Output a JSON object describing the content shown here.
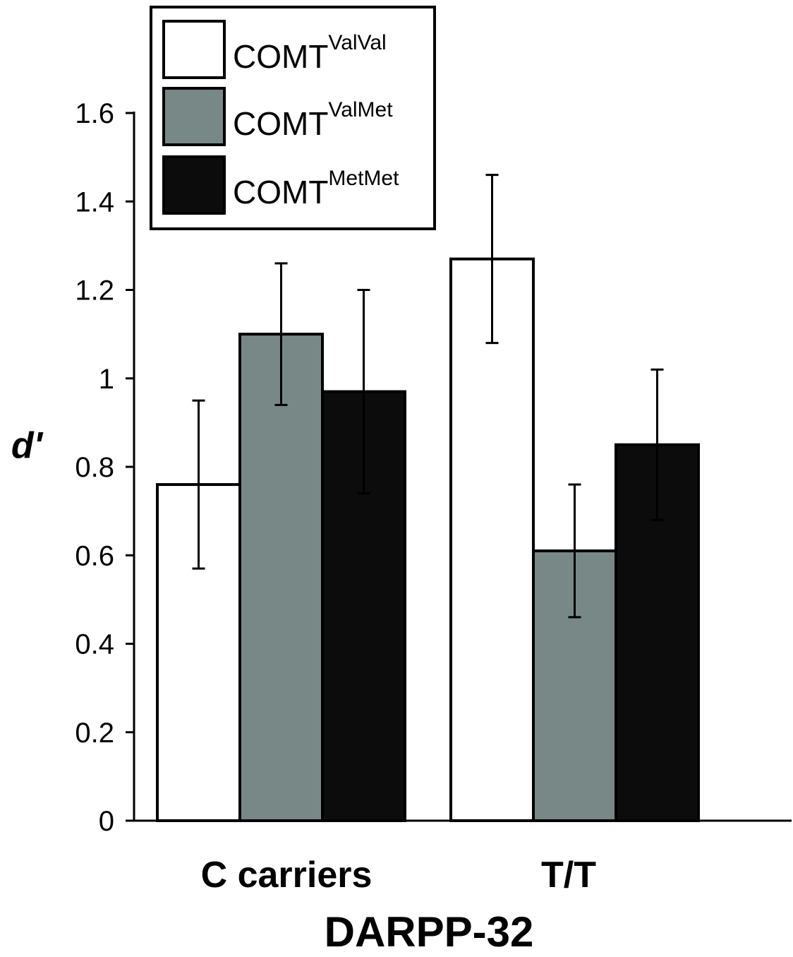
{
  "chart_data": {
    "type": "bar",
    "title": "",
    "xlabel": "DARPP-32",
    "ylabel": "d'",
    "ylim": [
      0,
      1.6
    ],
    "yticks": [
      "0",
      "0.2",
      "0.4",
      "0.6",
      "0.8",
      "1",
      "1.2",
      "1.4",
      "1.6"
    ],
    "categories": [
      "C carriers",
      "T/T"
    ],
    "series": [
      {
        "name": "COMT",
        "sup": "ValVal",
        "color": "#ffffff",
        "values": [
          0.76,
          1.27
        ],
        "error": [
          0.19,
          0.19
        ]
      },
      {
        "name": "COMT",
        "sup": "ValMet",
        "color": "#788886",
        "values": [
          1.1,
          0.61
        ],
        "error": [
          0.16,
          0.15
        ]
      },
      {
        "name": "COMT",
        "sup": "MetMet",
        "color": "#0c0c0c",
        "values": [
          0.97,
          0.85
        ],
        "error": [
          0.23,
          0.17
        ]
      }
    ],
    "legend_position": "top-left",
    "grid": false
  }
}
